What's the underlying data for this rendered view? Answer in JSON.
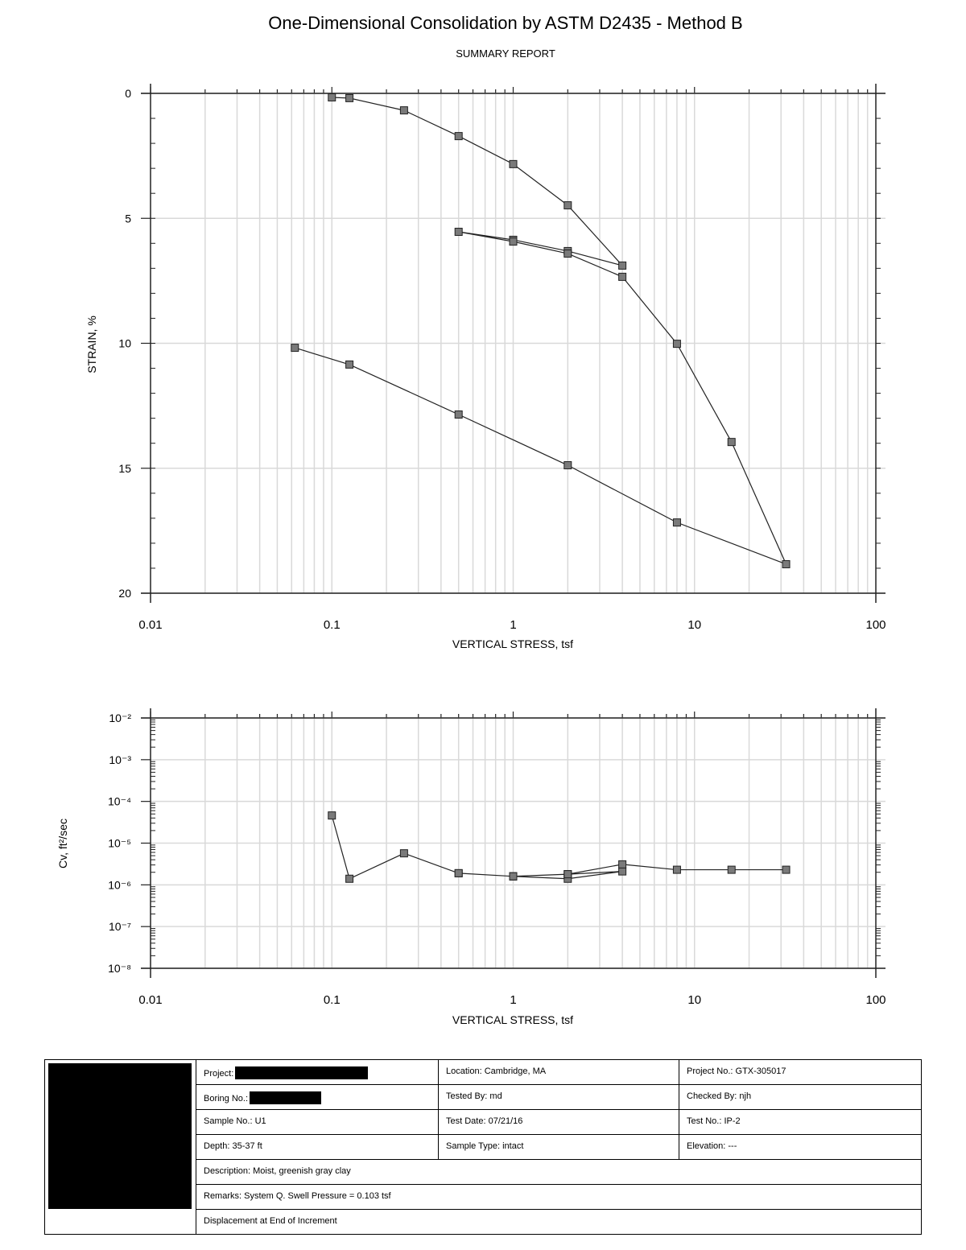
{
  "header": {
    "title": "One-Dimensional Consolidation by ASTM D2435 - Method B",
    "subtitle": "SUMMARY REPORT"
  },
  "chart_data": [
    {
      "type": "line",
      "title": "Strain vs Vertical Stress",
      "xlabel": "VERTICAL STRESS, tsf",
      "ylabel": "STRAIN, %",
      "xscale": "log",
      "xlim": [
        0.01,
        100
      ],
      "ylim": [
        0,
        20
      ],
      "y_inverted": true,
      "grid": true,
      "x_ticks": [
        "0.01",
        "0.1",
        "1",
        "10",
        "100"
      ],
      "y_ticks": [
        "0",
        "5",
        "10",
        "15",
        "20"
      ],
      "marker": "square",
      "series": [
        {
          "name": "Strain",
          "x": [
            0.1,
            0.125,
            0.25,
            0.5,
            1,
            2,
            4,
            2,
            1,
            0.5,
            1,
            2,
            4,
            8,
            16,
            32,
            8,
            2,
            0.5,
            0.125,
            0.0625
          ],
          "y": [
            0.16,
            0.19,
            0.68,
            1.71,
            2.83,
            4.48,
            6.89,
            6.31,
            5.86,
            5.54,
            5.93,
            6.41,
            7.34,
            10.02,
            13.95,
            18.84,
            17.17,
            14.88,
            12.85,
            10.85,
            10.18
          ]
        }
      ]
    },
    {
      "type": "line",
      "title": "Cv vs Vertical Stress",
      "xlabel": "VERTICAL STRESS, tsf",
      "ylabel": "Cv, ft²/sec",
      "xscale": "log",
      "yscale": "log",
      "xlim": [
        0.01,
        100
      ],
      "ylim": [
        1e-08,
        0.01
      ],
      "grid": true,
      "x_ticks": [
        "0.01",
        "0.1",
        "1",
        "10",
        "100"
      ],
      "y_ticks": [
        "10⁻²",
        "10⁻³",
        "10⁻⁴",
        "10⁻⁵",
        "10⁻⁶",
        "10⁻⁷",
        "10⁻⁸"
      ],
      "marker": "square",
      "series": [
        {
          "name": "Cv",
          "x": [
            0.1,
            0.125,
            0.25,
            0.5,
            1,
            2,
            4,
            2,
            1,
            0.5,
            1,
            2,
            4,
            8,
            16,
            32
          ],
          "y": [
            4.6e-05,
            1.4e-06,
            5.7e-06,
            1.9e-06,
            1.6e-06,
            1.8e-06,
            2.1e-06,
            1.4e-06,
            1.6e-06,
            1.9e-06,
            1.6e-06,
            1.8e-06,
            3.1e-06,
            2.3e-06,
            2.3e-06,
            2.3e-06
          ]
        }
      ]
    }
  ],
  "axes": {
    "strain_ylabel": "STRAIN, %",
    "cv_ylabel": "Cv, ft²/sec",
    "xlabel": "VERTICAL STRESS, tsf",
    "x_ticks": [
      "0.01",
      "0.1",
      "1",
      "10",
      "100"
    ],
    "strain_ticks": [
      "0",
      "5",
      "10",
      "15",
      "20"
    ],
    "cv_ticks": [
      "10⁻²",
      "10⁻³",
      "10⁻⁴",
      "10⁻⁵",
      "10⁻⁶",
      "10⁻⁷",
      "10⁻⁸"
    ]
  },
  "info": {
    "project_label": "Project:",
    "location": "Location: Cambridge, MA",
    "project_no": "Project No.: GTX-305017",
    "boring_label": "Boring No.:",
    "tested_by": "Tested By: md",
    "checked_by": "Checked By: njh",
    "sample_no": "Sample No.: U1",
    "test_date": "Test Date: 07/21/16",
    "test_no": "Test No.: IP-2",
    "depth": "Depth: 35-37 ft",
    "sample_type": "Sample Type: intact",
    "elevation": "Elevation: ---",
    "description": "Description: Moist, greenish gray clay",
    "remarks": "Remarks: System Q. Swell Pressure = 0.103 tsf",
    "displacement": "Displacement at End of Increment"
  },
  "colors": {
    "marker_fill": "#7a7a7a",
    "line": "#222222",
    "grid": "#d9d9d9"
  }
}
